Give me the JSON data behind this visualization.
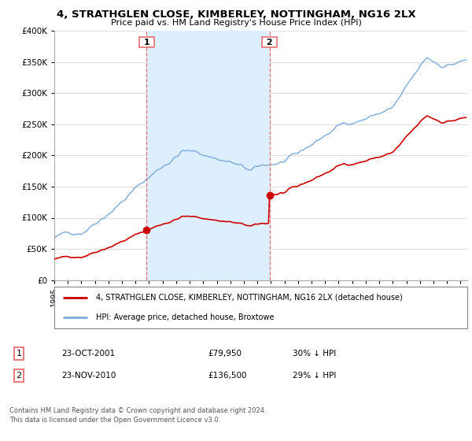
{
  "title": "4, STRATHGLEN CLOSE, KIMBERLEY, NOTTINGHAM, NG16 2LX",
  "subtitle": "Price paid vs. HM Land Registry's House Price Index (HPI)",
  "ylim": [
    0,
    400000
  ],
  "yticks": [
    0,
    50000,
    100000,
    150000,
    200000,
    250000,
    300000,
    350000,
    400000
  ],
  "xlim_start": 1995.0,
  "xlim_end": 2025.5,
  "sale1_date": 2001.82,
  "sale1_price": 79950,
  "sale1_label": "1",
  "sale2_date": 2010.9,
  "sale2_price": 136500,
  "sale2_label": "2",
  "legend_entry1": "4, STRATHGLEN CLOSE, KIMBERLEY, NOTTINGHAM, NG16 2LX (detached house)",
  "legend_entry2": "HPI: Average price, detached house, Broxtowe",
  "table_row1": [
    "1",
    "23-OCT-2001",
    "£79,950",
    "30% ↓ HPI"
  ],
  "table_row2": [
    "2",
    "23-NOV-2010",
    "£136,500",
    "29% ↓ HPI"
  ],
  "footnote1": "Contains HM Land Registry data © Crown copyright and database right 2024.",
  "footnote2": "This data is licensed under the Open Government Licence v3.0.",
  "hpi_color": "#7aabdb",
  "sale_color": "#cc0000",
  "vline_color": "#e87070",
  "shade_color": "#ddeeff",
  "background_plot": "#ffffff",
  "background_fig": "#ffffff",
  "grid_color": "#dddddd"
}
